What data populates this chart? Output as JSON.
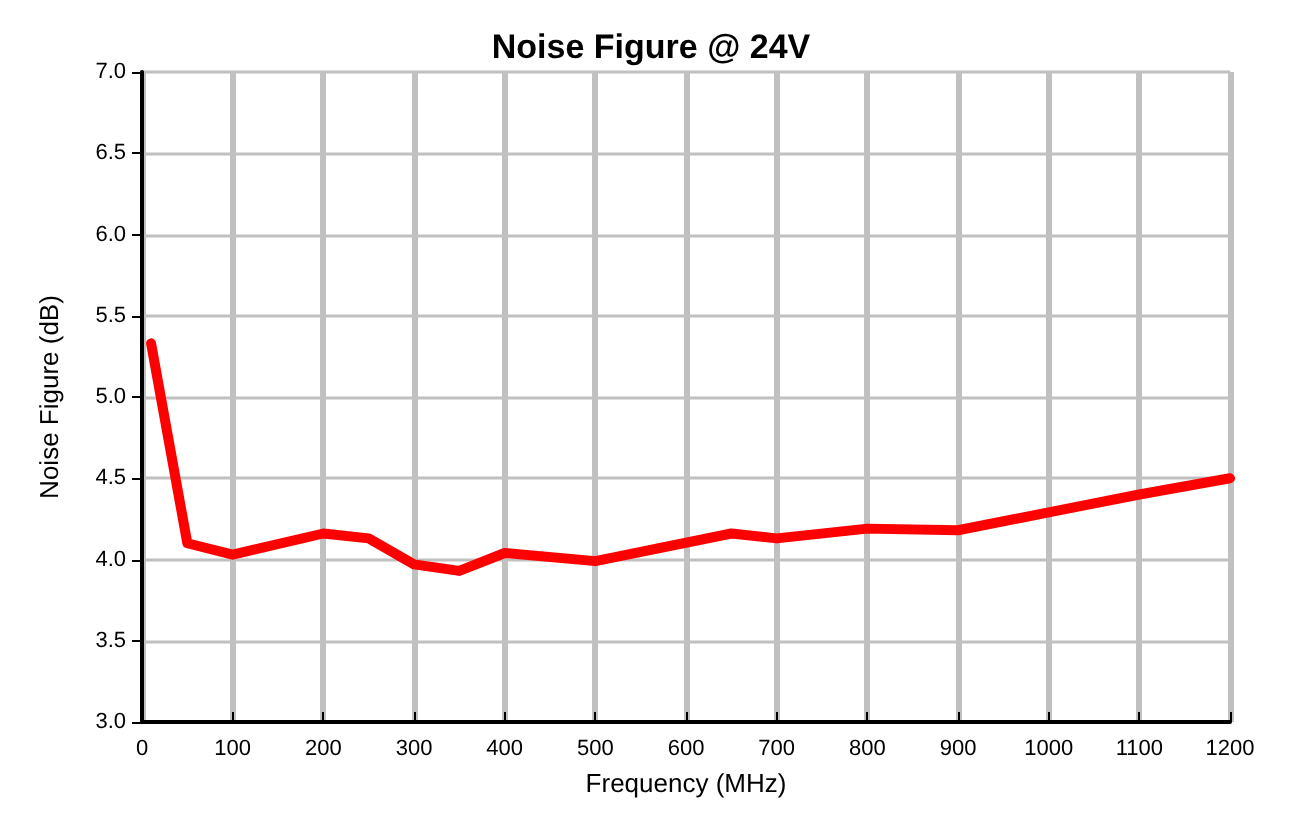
{
  "chart_data": {
    "type": "line",
    "title": "Noise Figure @ 24V",
    "xlabel": "Frequency (MHz)",
    "ylabel": "Noise Figure (dB)",
    "x": [
      10,
      50,
      100,
      200,
      250,
      300,
      350,
      400,
      500,
      650,
      700,
      800,
      900,
      1000,
      1100,
      1200
    ],
    "series": [
      {
        "color": "#ff0000",
        "values": [
          5.33,
          4.1,
          4.03,
          4.16,
          4.13,
          3.97,
          3.93,
          4.04,
          3.99,
          4.16,
          4.13,
          4.19,
          4.18,
          4.29,
          4.4,
          4.5
        ]
      }
    ],
    "xlim": [
      0,
      1200
    ],
    "xticks": [
      0,
      100,
      200,
      300,
      400,
      500,
      600,
      700,
      800,
      900,
      1000,
      1100,
      1200
    ],
    "ylim": [
      3,
      7
    ],
    "yticks": [
      {
        "value": 3,
        "label": "3.0"
      },
      3.5,
      {
        "value": 4,
        "label": "4.0"
      },
      4.5,
      {
        "value": 5,
        "label": "5.0"
      },
      5.5,
      {
        "value": 6,
        "label": "6.0"
      },
      6.5,
      {
        "value": 7,
        "label": "7.0"
      }
    ],
    "grid": true,
    "marker": "none",
    "line_style": "solid"
  }
}
